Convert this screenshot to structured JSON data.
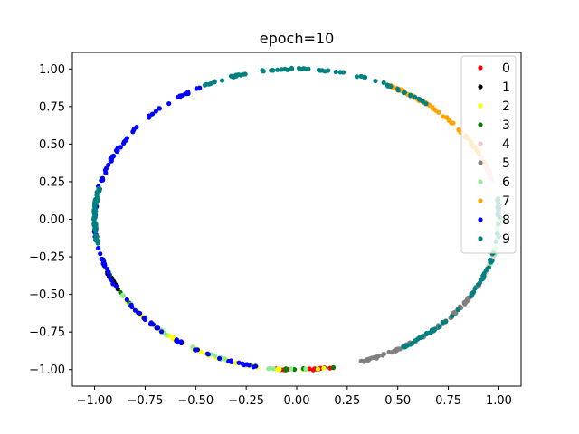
{
  "chart_data": {
    "type": "scatter",
    "title": "epoch=10",
    "xlabel": "",
    "ylabel": "",
    "xlim": [
      -1.11,
      1.11
    ],
    "ylim": [
      -1.11,
      1.11
    ],
    "xticks": [
      -1.0,
      -0.75,
      -0.5,
      -0.25,
      0.0,
      0.25,
      0.5,
      0.75,
      1.0
    ],
    "xtick_labels": [
      "−1.00",
      "−0.75",
      "−0.50",
      "−0.25",
      "0.00",
      "0.25",
      "0.50",
      "0.75",
      "1.00"
    ],
    "yticks": [
      -1.0,
      -0.75,
      -0.5,
      -0.25,
      0.0,
      0.25,
      0.5,
      0.75,
      1.0
    ],
    "ytick_labels": [
      "−1.00",
      "−0.75",
      "−0.50",
      "−0.25",
      "0.00",
      "0.25",
      "0.50",
      "0.75",
      "1.00"
    ],
    "grid": false,
    "legend_position": "upper-right",
    "series": [
      {
        "name": "0",
        "color": "#ff0000",
        "angle_ranges_deg": [
          [
            262,
            282
          ]
        ],
        "count": 14
      },
      {
        "name": "1",
        "color": "#000000",
        "angle_ranges_deg": [
          [
            196,
            208
          ]
        ],
        "count": 14
      },
      {
        "name": "2",
        "color": "#ffff00",
        "angle_ranges_deg": [
          [
            212,
            278
          ]
        ],
        "count": 50
      },
      {
        "name": "3",
        "color": "#008000",
        "angle_ranges_deg": [
          [
            265,
            285
          ],
          [
            200,
            215
          ]
        ],
        "count": 10
      },
      {
        "name": "4",
        "color": "#ffc0cb",
        "angle_ranges_deg": [
          [
            320,
            357
          ],
          [
            15,
            25
          ]
        ],
        "count": 36
      },
      {
        "name": "5",
        "color": "#808080",
        "angle_ranges_deg": [
          [
            288,
            338
          ]
        ],
        "count": 90
      },
      {
        "name": "6",
        "color": "#90ee90",
        "angle_ranges_deg": [
          [
            210,
            275
          ],
          [
            340,
            360
          ]
        ],
        "count": 50
      },
      {
        "name": "7",
        "color": "#ffa500",
        "angle_ranges_deg": [
          [
            22,
            63
          ]
        ],
        "count": 65
      },
      {
        "name": "8",
        "color": "#0000ff",
        "angle_ranges_deg": [
          [
            118,
            182
          ],
          [
            182,
            260
          ]
        ],
        "count": 130
      },
      {
        "name": "9",
        "color": "#008080",
        "angle_ranges_deg": [
          [
            50,
            120
          ],
          [
            -60,
            10
          ],
          [
            168,
            190
          ]
        ],
        "count": 190
      }
    ]
  }
}
